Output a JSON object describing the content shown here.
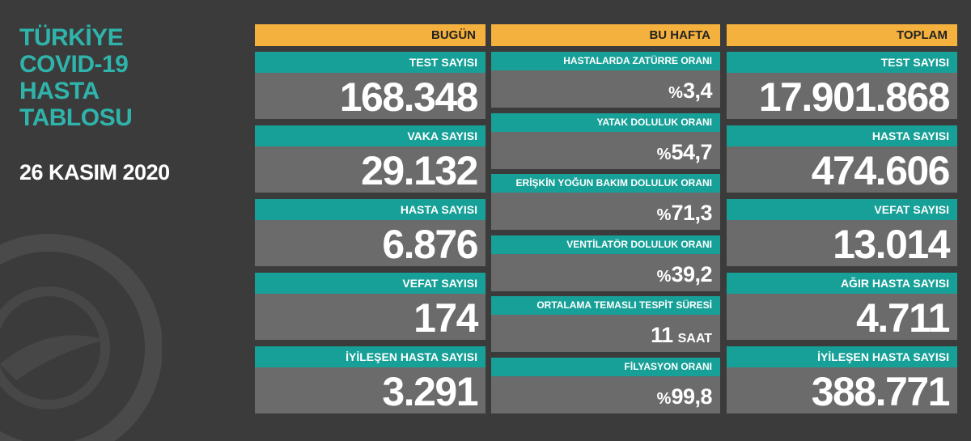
{
  "header": {
    "title_lines": [
      "TÜRKİYE",
      "COVID-19",
      "HASTA",
      "TABLOSU"
    ],
    "date": "26 KASIM 2020"
  },
  "columns": [
    {
      "heading": "BUGÜN",
      "items": [
        {
          "label": "TEST SAYISI",
          "value": "168.348"
        },
        {
          "label": "VAKA SAYISI",
          "value": "29.132"
        },
        {
          "label": "HASTA SAYISI",
          "value": "6.876"
        },
        {
          "label": "VEFAT SAYISI",
          "value": "174"
        },
        {
          "label": "İYİLEŞEN HASTA SAYISI",
          "value": "3.291"
        }
      ]
    },
    {
      "heading": "BU HAFTA",
      "items": [
        {
          "label": "HASTALARDA ZATÜRRE ORANI",
          "prefix": "%",
          "value": "3,4"
        },
        {
          "label": "YATAK DOLULUK ORANI",
          "prefix": "%",
          "value": "54,7"
        },
        {
          "label": "ERİŞKİN YOĞUN BAKIM DOLULUK ORANI",
          "prefix": "%",
          "value": "71,3"
        },
        {
          "label": "VENTİLATÖR DOLULUK ORANI",
          "prefix": "%",
          "value": "39,2"
        },
        {
          "label": "ORTALAMA TEMASLI TESPİT SÜRESİ",
          "value": "11",
          "suffix": "SAAT"
        },
        {
          "label": "FİLYASYON ORANI",
          "prefix": "%",
          "value": "99,8"
        }
      ]
    },
    {
      "heading": "TOPLAM",
      "items": [
        {
          "label": "TEST SAYISI",
          "value": "17.901.868"
        },
        {
          "label": "HASTA SAYISI",
          "value": "474.606"
        },
        {
          "label": "VEFAT SAYISI",
          "value": "13.014"
        },
        {
          "label": "AĞIR HASTA SAYISI",
          "value": "4.711"
        },
        {
          "label": "İYİLEŞEN HASTA SAYISI",
          "value": "388.771"
        }
      ]
    }
  ]
}
